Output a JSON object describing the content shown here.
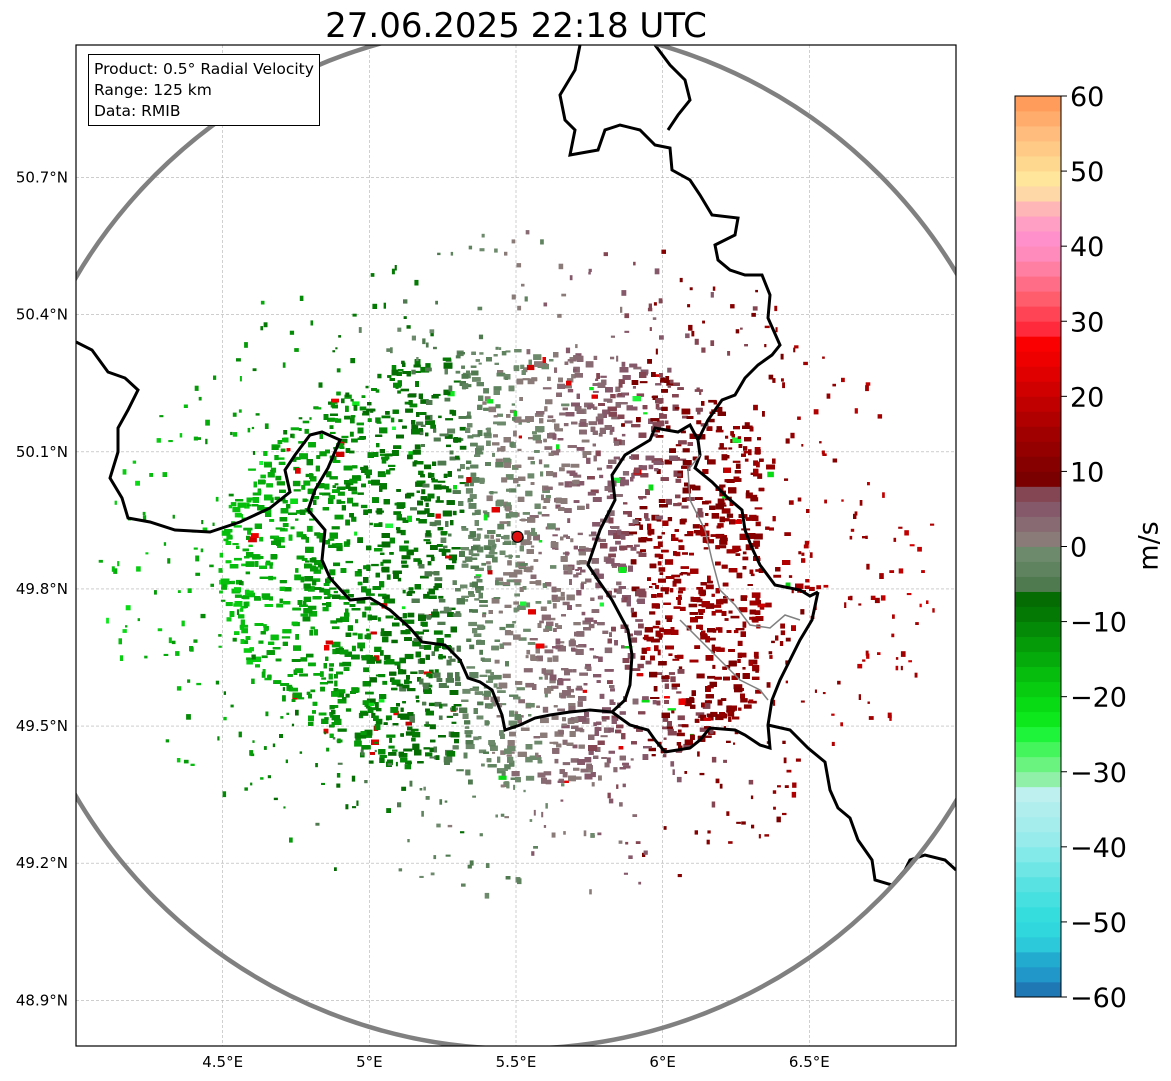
{
  "title": "27.06.2025 22:18 UTC",
  "info": {
    "product": "Product: 0.5° Radial Velocity",
    "range": "Range: 125 km",
    "data": "Data: RMIB"
  },
  "map": {
    "lon_range": [
      4.0,
      7.0
    ],
    "lat_range": [
      48.8,
      50.99
    ],
    "lon_ticks": [
      {
        "value": 4.5,
        "label": "4.5°E"
      },
      {
        "value": 5.0,
        "label": "5°E"
      },
      {
        "value": 5.5,
        "label": "5.5°E"
      },
      {
        "value": 6.0,
        "label": "6°E"
      },
      {
        "value": 6.5,
        "label": "6.5°E"
      }
    ],
    "lat_ticks": [
      {
        "value": 48.9,
        "label": "48.9°N"
      },
      {
        "value": 49.2,
        "label": "49.2°N"
      },
      {
        "value": 49.5,
        "label": "49.5°N"
      },
      {
        "value": 49.8,
        "label": "49.8°N"
      },
      {
        "value": 50.1,
        "label": "50.1°N"
      },
      {
        "value": 50.4,
        "label": "50.4°N"
      },
      {
        "value": 50.7,
        "label": "50.7°N"
      }
    ],
    "radar_site": {
      "lon": 5.505,
      "lat": 49.914
    },
    "grid": true,
    "range_ring_color": "#808080"
  },
  "colorbar": {
    "unit": "m/s",
    "min": -60,
    "max": 60,
    "ticks": [
      {
        "value": 60,
        "label": "60"
      },
      {
        "value": 50,
        "label": "50"
      },
      {
        "value": 40,
        "label": "40"
      },
      {
        "value": 30,
        "label": "30"
      },
      {
        "value": 20,
        "label": "20"
      },
      {
        "value": 10,
        "label": "10"
      },
      {
        "value": 0,
        "label": "0"
      },
      {
        "value": -10,
        "label": "−10"
      },
      {
        "value": -20,
        "label": "−20"
      },
      {
        "value": -30,
        "label": "−30"
      },
      {
        "value": -40,
        "label": "−40"
      },
      {
        "value": -50,
        "label": "−50"
      },
      {
        "value": -60,
        "label": "−60"
      }
    ],
    "bands": [
      {
        "from": -60,
        "to": -58,
        "color": "#1f77b4"
      },
      {
        "from": -58,
        "to": -56,
        "color": "#2196c9"
      },
      {
        "from": -56,
        "to": -54,
        "color": "#23aacf"
      },
      {
        "from": -54,
        "to": -52,
        "color": "#2bc9d9"
      },
      {
        "from": -52,
        "to": -50,
        "color": "#30d8de"
      },
      {
        "from": -50,
        "to": -48,
        "color": "#35dddd"
      },
      {
        "from": -48,
        "to": -46,
        "color": "#46e0e0"
      },
      {
        "from": -46,
        "to": -44,
        "color": "#58e2e2"
      },
      {
        "from": -44,
        "to": -42,
        "color": "#6ee6e6"
      },
      {
        "from": -42,
        "to": -40,
        "color": "#83e9e9"
      },
      {
        "from": -40,
        "to": -38,
        "color": "#97ebeb"
      },
      {
        "from": -38,
        "to": -36,
        "color": "#a5eded"
      },
      {
        "from": -36,
        "to": -34,
        "color": "#b0eeee"
      },
      {
        "from": -34,
        "to": -32,
        "color": "#bef0f0"
      },
      {
        "from": -32,
        "to": -30,
        "color": "#90f0a8"
      },
      {
        "from": -30,
        "to": -28,
        "color": "#6af47f"
      },
      {
        "from": -28,
        "to": -26,
        "color": "#44f65b"
      },
      {
        "from": -26,
        "to": -24,
        "color": "#1ef53a"
      },
      {
        "from": -24,
        "to": -22,
        "color": "#0ce81c"
      },
      {
        "from": -22,
        "to": -20,
        "color": "#08da14"
      },
      {
        "from": -20,
        "to": -18,
        "color": "#07cc10"
      },
      {
        "from": -18,
        "to": -16,
        "color": "#06bc0d"
      },
      {
        "from": -16,
        "to": -14,
        "color": "#05ab0a"
      },
      {
        "from": -14,
        "to": -12,
        "color": "#059a08"
      },
      {
        "from": -12,
        "to": -10,
        "color": "#048a06"
      },
      {
        "from": -10,
        "to": -8,
        "color": "#047a04"
      },
      {
        "from": -8,
        "to": -6,
        "color": "#046c03"
      },
      {
        "from": -6,
        "to": -4,
        "color": "#4f7a4f"
      },
      {
        "from": -4,
        "to": -2,
        "color": "#5f825f"
      },
      {
        "from": -2,
        "to": 0,
        "color": "#6e8a6c"
      },
      {
        "from": 0,
        "to": 2,
        "color": "#8a7a78"
      },
      {
        "from": 2,
        "to": 4,
        "color": "#876a72"
      },
      {
        "from": 4,
        "to": 6,
        "color": "#85586a"
      },
      {
        "from": 6,
        "to": 8,
        "color": "#834652"
      },
      {
        "from": 8,
        "to": 10,
        "color": "#7a0000"
      },
      {
        "from": 10,
        "to": 12,
        "color": "#870000"
      },
      {
        "from": 12,
        "to": 14,
        "color": "#940000"
      },
      {
        "from": 14,
        "to": 16,
        "color": "#a10000"
      },
      {
        "from": 16,
        "to": 18,
        "color": "#b00000"
      },
      {
        "from": 18,
        "to": 20,
        "color": "#c00000"
      },
      {
        "from": 20,
        "to": 22,
        "color": "#d00000"
      },
      {
        "from": 22,
        "to": 24,
        "color": "#e00000"
      },
      {
        "from": 24,
        "to": 26,
        "color": "#ee0000"
      },
      {
        "from": 26,
        "to": 28,
        "color": "#fa0000"
      },
      {
        "from": 28,
        "to": 30,
        "color": "#ff2a3c"
      },
      {
        "from": 30,
        "to": 32,
        "color": "#ff4555"
      },
      {
        "from": 32,
        "to": 34,
        "color": "#ff5c6c"
      },
      {
        "from": 34,
        "to": 36,
        "color": "#ff6e86"
      },
      {
        "from": 36,
        "to": 38,
        "color": "#ff7fa2"
      },
      {
        "from": 38,
        "to": 40,
        "color": "#ff8bbd"
      },
      {
        "from": 40,
        "to": 42,
        "color": "#ff90cc"
      },
      {
        "from": 42,
        "to": 44,
        "color": "#ff9fc4"
      },
      {
        "from": 44,
        "to": 46,
        "color": "#ffb6b6"
      },
      {
        "from": 46,
        "to": 48,
        "color": "#ffd8a8"
      },
      {
        "from": 48,
        "to": 50,
        "color": "#ffe69a"
      },
      {
        "from": 50,
        "to": 52,
        "color": "#ffd890"
      },
      {
        "from": 52,
        "to": 54,
        "color": "#ffca86"
      },
      {
        "from": 54,
        "to": 56,
        "color": "#ffbc7c"
      },
      {
        "from": 56,
        "to": 58,
        "color": "#ffac6c"
      },
      {
        "from": 58,
        "to": 60,
        "color": "#ff9c5c"
      }
    ]
  }
}
